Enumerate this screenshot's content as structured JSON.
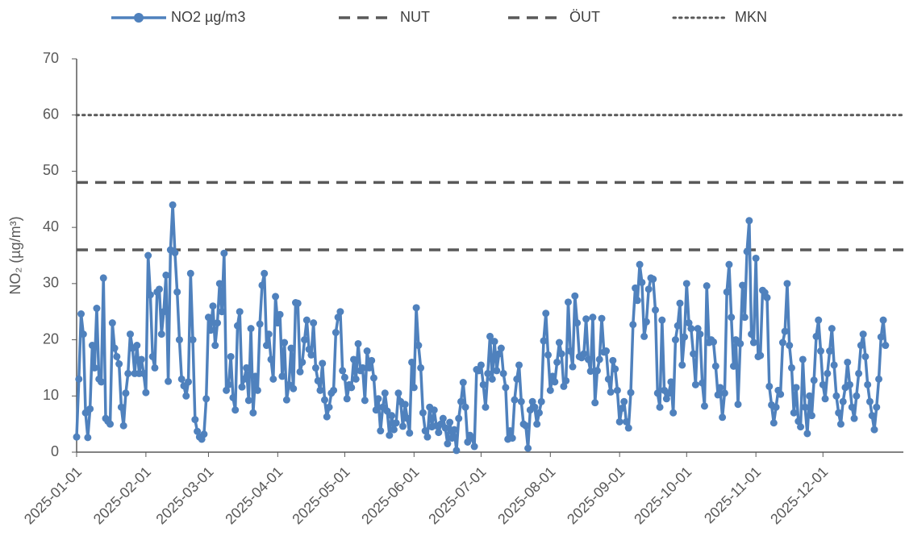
{
  "chart_data": {
    "type": "line",
    "y_label": "NO₂ (µg/m³)",
    "x": [
      "2025-01-01",
      "2025-01-02",
      "2025-01-03",
      "2025-01-04",
      "2025-01-05",
      "2025-01-06",
      "2025-01-07",
      "2025-01-08",
      "2025-01-09",
      "2025-01-10",
      "2025-01-11",
      "2025-01-12",
      "2025-01-13",
      "2025-01-14",
      "2025-01-15",
      "2025-01-16",
      "2025-01-17",
      "2025-01-18",
      "2025-01-19",
      "2025-01-20",
      "2025-01-21",
      "2025-01-22",
      "2025-01-23",
      "2025-01-24",
      "2025-01-25",
      "2025-01-26",
      "2025-01-27",
      "2025-01-28",
      "2025-01-29",
      "2025-01-30",
      "2025-01-31",
      "2025-02-01",
      "2025-02-02",
      "2025-02-03",
      "2025-02-04",
      "2025-02-05",
      "2025-02-06",
      "2025-02-07",
      "2025-02-08",
      "2025-02-09",
      "2025-02-10",
      "2025-02-11",
      "2025-02-12",
      "2025-02-13",
      "2025-02-14",
      "2025-02-15",
      "2025-02-16",
      "2025-02-17",
      "2025-02-18",
      "2025-02-19",
      "2025-02-20",
      "2025-02-21",
      "2025-02-22",
      "2025-02-23",
      "2025-02-24",
      "2025-02-25",
      "2025-02-26",
      "2025-02-27",
      "2025-02-28",
      "2025-03-01",
      "2025-03-02",
      "2025-03-03",
      "2025-03-04",
      "2025-03-05",
      "2025-03-06",
      "2025-03-07",
      "2025-03-08",
      "2025-03-09",
      "2025-03-10",
      "2025-03-11",
      "2025-03-12",
      "2025-03-13",
      "2025-03-14",
      "2025-03-15",
      "2025-03-16",
      "2025-03-17",
      "2025-03-18",
      "2025-03-19",
      "2025-03-20",
      "2025-03-21",
      "2025-03-22",
      "2025-03-23",
      "2025-03-24",
      "2025-03-25",
      "2025-03-26",
      "2025-03-27",
      "2025-03-28",
      "2025-03-29",
      "2025-03-30",
      "2025-03-31",
      "2025-04-01",
      "2025-04-02",
      "2025-04-03",
      "2025-04-04",
      "2025-04-05",
      "2025-04-06",
      "2025-04-07",
      "2025-04-08",
      "2025-04-09",
      "2025-04-10",
      "2025-04-11",
      "2025-04-12",
      "2025-04-13",
      "2025-04-14",
      "2025-04-15",
      "2025-04-16",
      "2025-04-17",
      "2025-04-18",
      "2025-04-19",
      "2025-04-20",
      "2025-04-21",
      "2025-04-22",
      "2025-04-23",
      "2025-04-24",
      "2025-04-25",
      "2025-04-26",
      "2025-04-27",
      "2025-04-28",
      "2025-04-29",
      "2025-04-30",
      "2025-05-01",
      "2025-05-02",
      "2025-05-03",
      "2025-05-04",
      "2025-05-05",
      "2025-05-06",
      "2025-05-07",
      "2025-05-08",
      "2025-05-09",
      "2025-05-10",
      "2025-05-11",
      "2025-05-12",
      "2025-05-13",
      "2025-05-14",
      "2025-05-15",
      "2025-05-16",
      "2025-05-17",
      "2025-05-18",
      "2025-05-19",
      "2025-05-20",
      "2025-05-21",
      "2025-05-22",
      "2025-05-23",
      "2025-05-24",
      "2025-05-25",
      "2025-05-26",
      "2025-05-27",
      "2025-05-28",
      "2025-05-29",
      "2025-05-30",
      "2025-05-31",
      "2025-06-01",
      "2025-06-02",
      "2025-06-03",
      "2025-06-04",
      "2025-06-05",
      "2025-06-06",
      "2025-06-07",
      "2025-06-08",
      "2025-06-09",
      "2025-06-10",
      "2025-06-11",
      "2025-06-12",
      "2025-06-13",
      "2025-06-14",
      "2025-06-15",
      "2025-06-16",
      "2025-06-17",
      "2025-06-18",
      "2025-06-19",
      "2025-06-20",
      "2025-06-21",
      "2025-06-22",
      "2025-06-23",
      "2025-06-24",
      "2025-06-25",
      "2025-06-26",
      "2025-06-27",
      "2025-06-28",
      "2025-06-29",
      "2025-06-30",
      "2025-07-01",
      "2025-07-02",
      "2025-07-03",
      "2025-07-04",
      "2025-07-05",
      "2025-07-06",
      "2025-07-07",
      "2025-07-08",
      "2025-07-09",
      "2025-07-10",
      "2025-07-11",
      "2025-07-12",
      "2025-07-13",
      "2025-07-14",
      "2025-07-15",
      "2025-07-16",
      "2025-07-17",
      "2025-07-18",
      "2025-07-19",
      "2025-07-20",
      "2025-07-21",
      "2025-07-22",
      "2025-07-23",
      "2025-07-24",
      "2025-07-25",
      "2025-07-26",
      "2025-07-27",
      "2025-07-28",
      "2025-07-29",
      "2025-07-30",
      "2025-07-31",
      "2025-08-01",
      "2025-08-02",
      "2025-08-03",
      "2025-08-04",
      "2025-08-05",
      "2025-08-06",
      "2025-08-07",
      "2025-08-08",
      "2025-08-09",
      "2025-08-10",
      "2025-08-11",
      "2025-08-12",
      "2025-08-13",
      "2025-08-14",
      "2025-08-15",
      "2025-08-16",
      "2025-08-17",
      "2025-08-18",
      "2025-08-19",
      "2025-08-20",
      "2025-08-21",
      "2025-08-22",
      "2025-08-23",
      "2025-08-24",
      "2025-08-25",
      "2025-08-26",
      "2025-08-27",
      "2025-08-28",
      "2025-08-29",
      "2025-08-30",
      "2025-08-31",
      "2025-09-01",
      "2025-09-02",
      "2025-09-03",
      "2025-09-04",
      "2025-09-05",
      "2025-09-06",
      "2025-09-07",
      "2025-09-08",
      "2025-09-09",
      "2025-09-10",
      "2025-09-11",
      "2025-09-12",
      "2025-09-13",
      "2025-09-14",
      "2025-09-15",
      "2025-09-16",
      "2025-09-17",
      "2025-09-18",
      "2025-09-19",
      "2025-09-20",
      "2025-09-21",
      "2025-09-22",
      "2025-09-23",
      "2025-09-24",
      "2025-09-25",
      "2025-09-26",
      "2025-09-27",
      "2025-09-28",
      "2025-09-29",
      "2025-09-30",
      "2025-10-01",
      "2025-10-02",
      "2025-10-03",
      "2025-10-04",
      "2025-10-05",
      "2025-10-06",
      "2025-10-07",
      "2025-10-08",
      "2025-10-09",
      "2025-10-10",
      "2025-10-11",
      "2025-10-12",
      "2025-10-13",
      "2025-10-14",
      "2025-10-15",
      "2025-10-16",
      "2025-10-17",
      "2025-10-18",
      "2025-10-19",
      "2025-10-20",
      "2025-10-21",
      "2025-10-22",
      "2025-10-23",
      "2025-10-24",
      "2025-10-25",
      "2025-10-26",
      "2025-10-27",
      "2025-10-28",
      "2025-10-29",
      "2025-10-30",
      "2025-10-31",
      "2025-11-01",
      "2025-11-02",
      "2025-11-03",
      "2025-11-04",
      "2025-11-05",
      "2025-11-06",
      "2025-11-07",
      "2025-11-08",
      "2025-11-09",
      "2025-11-10",
      "2025-11-11",
      "2025-11-12",
      "2025-11-13",
      "2025-11-14",
      "2025-11-15",
      "2025-11-16",
      "2025-11-17",
      "2025-11-18",
      "2025-11-19",
      "2025-11-20",
      "2025-11-21",
      "2025-11-22",
      "2025-11-23",
      "2025-11-24",
      "2025-11-25",
      "2025-11-26",
      "2025-11-27",
      "2025-11-28",
      "2025-11-29",
      "2025-11-30",
      "2025-12-01",
      "2025-12-02",
      "2025-12-03",
      "2025-12-04",
      "2025-12-05",
      "2025-12-06",
      "2025-12-07",
      "2025-12-08",
      "2025-12-09",
      "2025-12-10",
      "2025-12-11",
      "2025-12-12",
      "2025-12-13",
      "2025-12-14",
      "2025-12-15",
      "2025-12-16",
      "2025-12-17",
      "2025-12-18",
      "2025-12-19",
      "2025-12-20",
      "2025-12-21",
      "2025-12-22",
      "2025-12-23",
      "2025-12-24",
      "2025-12-25",
      "2025-12-26",
      "2025-12-27",
      "2025-12-28",
      "2025-12-29"
    ],
    "series": [
      {
        "name": "NO2 µg/m3",
        "color": "#4f81bd",
        "marker": "circle",
        "values": [
          2.7,
          13,
          24.6,
          21,
          7,
          2.6,
          7.7,
          19,
          15,
          25.6,
          13,
          12.5,
          31,
          6,
          5.5,
          5,
          23,
          18.5,
          17,
          15.7,
          8,
          4.7,
          10.5,
          14,
          21,
          18.5,
          14,
          19,
          14,
          16.5,
          14,
          10.6,
          35,
          28,
          17,
          15,
          28.5,
          29,
          21,
          25,
          31.5,
          12.6,
          36,
          44,
          35.5,
          28.5,
          20,
          13,
          11.8,
          10,
          12.5,
          31.8,
          20,
          5.8,
          3.7,
          2.7,
          2.3,
          3.2,
          9.5,
          24,
          21.7,
          26,
          19,
          23,
          30,
          25,
          35.4,
          11,
          12,
          17,
          9.7,
          7.5,
          22.5,
          25,
          11.6,
          13,
          15,
          9.2,
          22,
          7,
          13.5,
          11,
          22.8,
          29.7,
          31.8,
          19,
          21,
          16.5,
          13,
          27.7,
          23,
          24.5,
          13.5,
          19.5,
          9.3,
          12,
          18.5,
          11.3,
          26.6,
          26.5,
          14.3,
          16,
          20,
          23.5,
          18.3,
          17.3,
          23,
          15,
          12.7,
          11,
          15.8,
          9.3,
          6.3,
          8,
          10.5,
          11,
          21.3,
          24,
          25,
          14.5,
          13.3,
          9.5,
          12,
          11.5,
          16.5,
          13,
          19.3,
          14.5,
          15,
          9.2,
          18,
          15,
          16.3,
          13.2,
          7.5,
          9.5,
          3.8,
          8,
          10.5,
          7.3,
          3,
          6.5,
          4,
          5.2,
          10.5,
          9,
          4.6,
          8.5,
          6,
          3.4,
          16,
          11.5,
          25.7,
          19,
          15,
          7,
          3.8,
          2.7,
          8,
          4.5,
          7.5,
          4.7,
          3.5,
          5,
          6,
          4.3,
          1.5,
          5.3,
          2.5,
          4,
          0.3,
          6,
          9,
          12.4,
          8,
          1.8,
          3,
          2.5,
          1,
          14.7,
          14.5,
          15.5,
          12,
          8,
          14,
          20.6,
          13,
          19.7,
          14.5,
          17.5,
          18.5,
          14,
          11.5,
          2.3,
          3.8,
          2.5,
          9.3,
          13,
          15.5,
          9,
          5,
          4.7,
          0.7,
          7.5,
          9,
          8,
          5,
          7,
          9,
          19.8,
          24.7,
          17.3,
          11,
          13.5,
          12.5,
          16,
          19.5,
          17.5,
          11.7,
          12.7,
          26.7,
          18,
          15.2,
          27.8,
          23,
          17,
          16.8,
          17.5,
          23.7,
          16.5,
          14.4,
          24,
          8.8,
          14.5,
          16.5,
          23.8,
          17.8,
          18,
          13,
          10.7,
          16.3,
          14.8,
          11,
          5.4,
          7.8,
          9,
          5.4,
          4.3,
          10.6,
          22.7,
          29.2,
          27,
          33.4,
          30.2,
          20.6,
          23.2,
          29,
          31,
          30.8,
          25.3,
          10.5,
          8,
          23.5,
          11,
          9.5,
          10.5,
          12.5,
          7,
          20,
          22.5,
          26.5,
          15.5,
          20.5,
          30,
          23,
          22,
          17.5,
          12,
          22,
          21,
          12.3,
          8.2,
          29.6,
          19.5,
          20,
          19.6,
          15.3,
          10.2,
          11.5,
          6.2,
          10.5,
          28.5,
          33.4,
          24,
          15.3,
          20,
          8.5,
          19.3,
          29.7,
          24,
          35.7,
          41.2,
          21,
          19.5,
          34.5,
          17,
          17.2,
          28.8,
          28.4,
          27.5,
          11.7,
          8.4,
          5.2,
          8,
          11,
          10.3,
          19.5,
          21.5,
          30,
          19,
          15,
          7,
          11.5,
          5.5,
          4.5,
          16.5,
          8,
          3.3,
          10,
          6.5,
          12.8,
          20.6,
          23.5,
          18,
          12,
          9.5,
          14,
          18,
          22,
          15.5,
          10,
          7,
          5,
          9,
          11.5,
          16,
          12,
          8,
          6,
          10,
          14,
          19,
          21,
          17,
          12,
          9,
          6.5,
          4,
          8,
          13,
          20.5,
          23.5,
          19
        ]
      }
    ],
    "reference_lines": [
      {
        "name": "NUT",
        "value": 36,
        "color": "#595959",
        "style": "dashed"
      },
      {
        "name": "ÖUT",
        "value": 48,
        "color": "#595959",
        "style": "dashed"
      },
      {
        "name": "MKN",
        "value": 60,
        "color": "#595959",
        "style": "dotted"
      }
    ],
    "xlim": [
      "2025-01-01",
      "2026-01-06"
    ],
    "xticks": [
      "2025-01-01",
      "2025-02-01",
      "2025-03-01",
      "2025-04-01",
      "2025-05-01",
      "2025-06-01",
      "2025-07-01",
      "2025-08-01",
      "2025-09-01",
      "2025-10-01",
      "2025-11-01",
      "2025-12-01"
    ],
    "ylim": [
      0,
      70
    ],
    "yticks": [
      0,
      10,
      20,
      30,
      40,
      50,
      60,
      70
    ],
    "grid": false,
    "legend": "top"
  }
}
